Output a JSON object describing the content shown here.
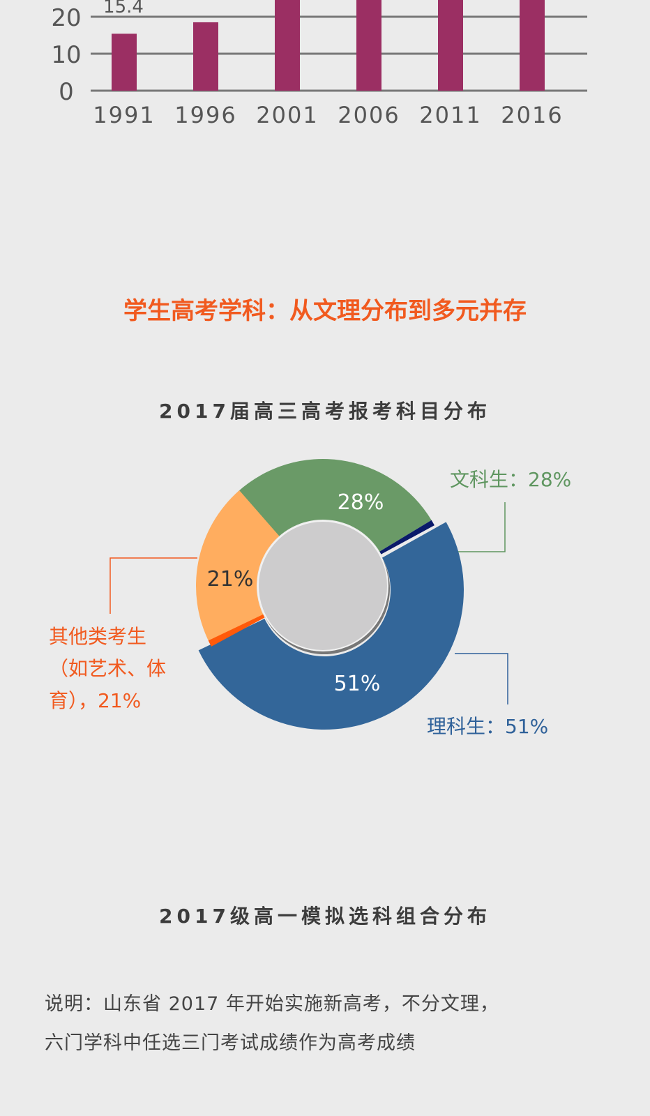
{
  "chart_data": [
    {
      "type": "bar",
      "categories": [
        "1991",
        "1996",
        "2001",
        "2006",
        "2011",
        "2016"
      ],
      "values": [
        15.4,
        18.5,
        null,
        null,
        null,
        null
      ],
      "data_labels": [
        "15.4"
      ],
      "yticks": [
        "0",
        "10",
        "20"
      ],
      "ylim_visible": [
        0,
        25
      ],
      "grid": true,
      "color": "#9b2f63",
      "note": ""
    },
    {
      "type": "pie",
      "title": "2017届高三高考报考科目分布",
      "donut": true,
      "slices": [
        {
          "name": "文科生",
          "value": 28,
          "inner_label": "28%",
          "label": "文科生：28%",
          "color": "#6a9a67",
          "label_color": "#5f9660"
        },
        {
          "name": "理科生",
          "value": 51,
          "inner_label": "51%",
          "label": "理科生：51%",
          "color": "#336699",
          "label_color": "#2f6199"
        },
        {
          "name": "其他类考生",
          "value": 21,
          "inner_label": "21%",
          "label_lines": [
            "其他类考生",
            "（如艺术、体",
            "育），21%"
          ],
          "color": "#ffad5f",
          "label_color": "#f15a1f"
        }
      ]
    }
  ],
  "section_title": "学生高考学科：从文理分布到多元并存",
  "chart2_title": "2017级高一模拟选科组合分布",
  "note_lines": [
    "说明：山东省 2017 年开始实施新高考，不分文理，",
    "六门学科中任选三门考试成绩作为高考成绩"
  ],
  "colors": {
    "background": "#ebebeb",
    "accent": "#f15a1f",
    "heading": "#3c3c3c"
  }
}
